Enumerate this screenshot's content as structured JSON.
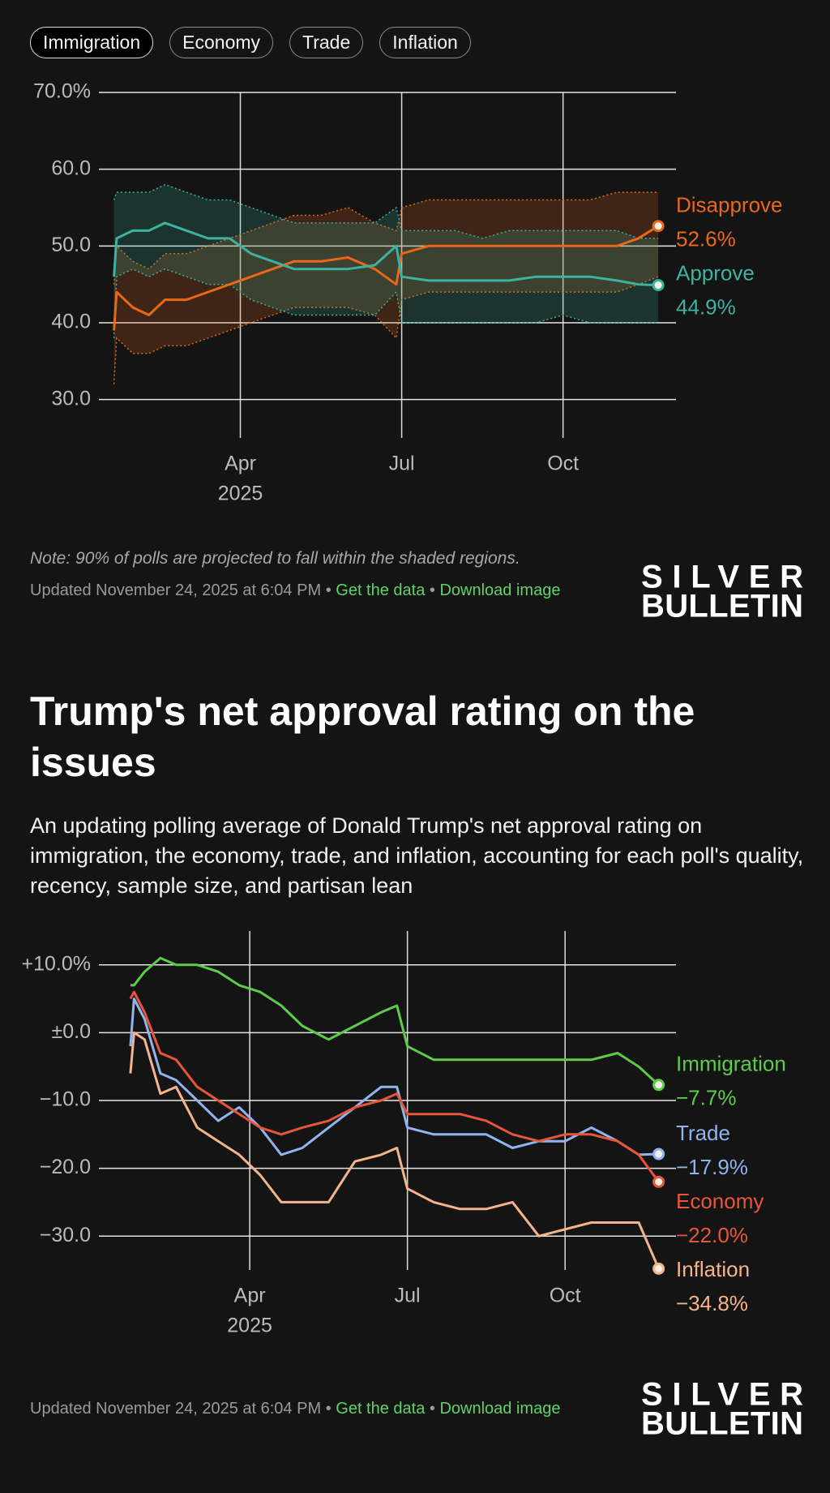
{
  "filters": [
    "Immigration",
    "Economy",
    "Trade",
    "Inflation"
  ],
  "chart_data": [
    {
      "type": "line",
      "x": [
        0.65,
        0.7,
        1.0,
        1.3,
        1.6,
        2.0,
        2.4,
        2.8,
        3.2,
        3.6,
        4.0,
        4.5,
        5.0,
        5.5,
        5.9,
        6.0,
        6.5,
        7.0,
        7.5,
        8.0,
        8.5,
        9.0,
        9.5,
        10.0,
        10.4,
        10.77
      ],
      "xlim": [
        0.37,
        11.1
      ],
      "xticks": [
        {
          "value": 3,
          "label": "Apr"
        },
        {
          "value": 6,
          "label": "Jul"
        },
        {
          "value": 9,
          "label": "Oct"
        }
      ],
      "year_label": "2025",
      "ylim": [
        25,
        70
      ],
      "yticks": [
        {
          "value": 70,
          "label": "70.0%"
        },
        {
          "value": 60,
          "label": "60.0"
        },
        {
          "value": 50,
          "label": "50.0"
        },
        {
          "value": 40,
          "label": "40.0"
        },
        {
          "value": 30,
          "label": "30.0"
        }
      ],
      "grid": true,
      "series": [
        {
          "name": "Disapprove",
          "color": "#e8681a",
          "last_label": "52.6%",
          "values": [
            39,
            44,
            42,
            41,
            43,
            43,
            44,
            45,
            46,
            47,
            48,
            48,
            48.5,
            47,
            45,
            49,
            50,
            50,
            50,
            50,
            50,
            50,
            50,
            50,
            51,
            52.6
          ],
          "upper": [
            45,
            50,
            48,
            47,
            49,
            49,
            50,
            51,
            52,
            53,
            54,
            54,
            55,
            53,
            52,
            55,
            56,
            56,
            56,
            56,
            56,
            56,
            56,
            57,
            57,
            57
          ],
          "lower": [
            32,
            38,
            36,
            36,
            37,
            37,
            38,
            39,
            40,
            41,
            42,
            42,
            42,
            41,
            38,
            43,
            44,
            44,
            44,
            44,
            44,
            44,
            44,
            44,
            45,
            46
          ]
        },
        {
          "name": "Approve",
          "color": "#3bb3a0",
          "last_label": "44.9%",
          "values": [
            46,
            51,
            52,
            52,
            53,
            52,
            51,
            51,
            49,
            48,
            47,
            47,
            47,
            47.5,
            50,
            46,
            45.5,
            45.5,
            45.5,
            45.5,
            46,
            46,
            46,
            45.5,
            45,
            44.9
          ],
          "upper": [
            56,
            57,
            57,
            57,
            58,
            57,
            56,
            56,
            55,
            54,
            53,
            53,
            53,
            53,
            55,
            52,
            52,
            52,
            51,
            52,
            52,
            52,
            52,
            52,
            51,
            51
          ],
          "lower": [
            38,
            46,
            47,
            46,
            47,
            46,
            45,
            45,
            43,
            42,
            41,
            41,
            41,
            41,
            44,
            40,
            40,
            40,
            40,
            40,
            40,
            41,
            40,
            40,
            40,
            40
          ]
        }
      ],
      "note": "Note: 90% of polls are projected to fall within the shaded regions.",
      "updated": "Updated November 24, 2025 at 6:04 PM",
      "separator": "•",
      "links": [
        "Get the data",
        "Download image"
      ],
      "logo": [
        "SILVER",
        "BULLETIN"
      ]
    },
    {
      "type": "line",
      "title": "Trump's net approval rating on the issues",
      "subtitle": "An updating polling average of Donald Trump's net approval rating on immigration, the economy, trade, and inflation, accounting for each poll's quality, recency, sample size, and partisan lean",
      "x": [
        0.73,
        0.8,
        1.0,
        1.3,
        1.6,
        2.0,
        2.4,
        2.8,
        3.2,
        3.6,
        4.0,
        4.5,
        5.0,
        5.5,
        5.8,
        6.0,
        6.5,
        7.0,
        7.5,
        8.0,
        8.5,
        9.0,
        9.5,
        10.0,
        10.4,
        10.78
      ],
      "xlim": [
        0.13,
        11.11
      ],
      "xticks": [
        {
          "value": 3,
          "label": "Apr"
        },
        {
          "value": 6,
          "label": "Jul"
        },
        {
          "value": 9,
          "label": "Oct"
        }
      ],
      "year_label": "2025",
      "ylim": [
        -35,
        15
      ],
      "yticks": [
        {
          "value": 10,
          "label": "+10.0%"
        },
        {
          "value": 0,
          "label": "±0.0"
        },
        {
          "value": -10,
          "label": "−10.0"
        },
        {
          "value": -20,
          "label": "−20.0"
        },
        {
          "value": -30,
          "label": "−30.0"
        }
      ],
      "grid": true,
      "series": [
        {
          "name": "Immigration",
          "color": "#5ccc4a",
          "last_label": "−7.7%",
          "values": [
            7,
            7,
            9,
            11,
            10,
            10,
            9,
            7,
            6,
            4,
            1,
            -1,
            1,
            3,
            4,
            -2,
            -4,
            -4,
            -4,
            -4,
            -4,
            -4,
            -4,
            -3,
            -5,
            -7.7
          ]
        },
        {
          "name": "Trade",
          "color": "#8fb4f0",
          "last_label": "−17.9%",
          "values": [
            -2,
            5,
            2,
            -6,
            -7,
            -10,
            -13,
            -11,
            -14,
            -18,
            -17,
            -14,
            -11,
            -8,
            -8,
            -14,
            -15,
            -15,
            -15,
            -17,
            -16,
            -16,
            -14,
            -16,
            -18,
            -17.9
          ]
        },
        {
          "name": "Economy",
          "color": "#e8563a",
          "last_label": "−22.0%",
          "values": [
            5,
            6,
            3,
            -3,
            -4,
            -8,
            -10,
            -12,
            -14,
            -15,
            -14,
            -13,
            -11,
            -10,
            -9,
            -12,
            -12,
            -12,
            -13,
            -15,
            -16,
            -15,
            -15,
            -16,
            -18,
            -22
          ]
        },
        {
          "name": "Inflation",
          "color": "#f5b48a",
          "last_label": "−34.8%",
          "values": [
            -6,
            0,
            -1,
            -9,
            -8,
            -14,
            -16,
            -18,
            -21,
            -25,
            -25,
            -25,
            -19,
            -18,
            -17,
            -23,
            -25,
            -26,
            -26,
            -25,
            -30,
            -29,
            -28,
            -28,
            -28,
            -34.8
          ]
        }
      ],
      "updated": "Updated November 24, 2025 at 6:04 PM",
      "separator": "•",
      "links": [
        "Get the data",
        "Download image"
      ],
      "logo": [
        "SILVER",
        "BULLETIN"
      ]
    }
  ]
}
